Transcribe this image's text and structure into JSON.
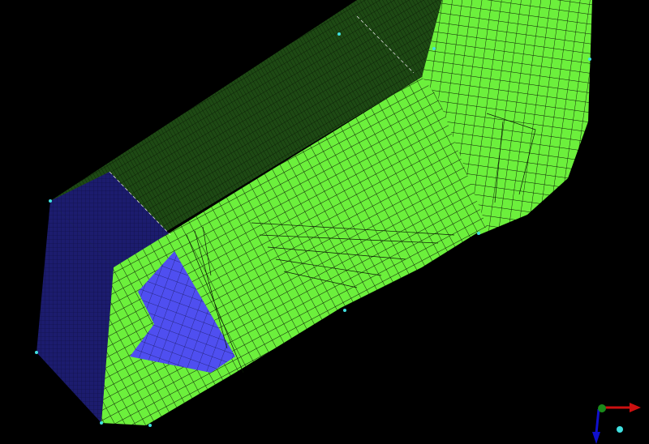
{
  "viewport": {
    "background": "#000000",
    "colors": {
      "green_surface": "#6cf03c",
      "dark_green_surface": "#1e4a14",
      "blue_surface": "#1c1c6e",
      "highlight_blue": "#4f4ff0",
      "mesh_line": "#0a1a05"
    }
  },
  "triad": {
    "x_axis_color": "#cc1010",
    "y_axis_color": "#1010cc",
    "origin_color": "#1a8a1a",
    "marker_color": "#40e0e0"
  }
}
